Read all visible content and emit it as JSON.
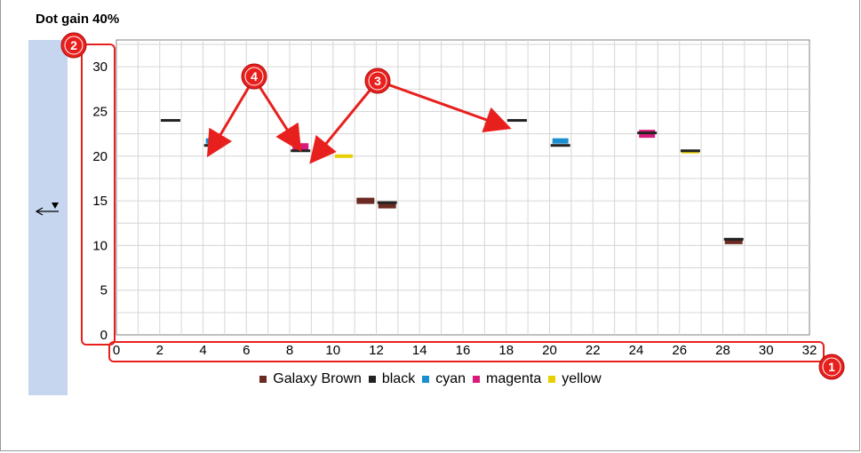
{
  "title": "Dot gain 40%",
  "side_panel": {
    "icon": "collapse-arrow-icon"
  },
  "chart_data": {
    "type": "scatter",
    "title": "Dot gain 40%",
    "xlabel": "",
    "ylabel": "",
    "xlim": [
      0,
      32
    ],
    "ylim": [
      0,
      33
    ],
    "xticks": [
      0,
      2,
      4,
      6,
      8,
      10,
      12,
      14,
      16,
      18,
      20,
      22,
      24,
      26,
      28,
      30,
      32
    ],
    "yticks": [
      0,
      5,
      10,
      15,
      20,
      25,
      30
    ],
    "grid": true,
    "legend_position": "bottom",
    "series": [
      {
        "name": "Galaxy Brown",
        "color": "#6b2a22",
        "points": [
          [
            11.5,
            15.0
          ],
          [
            12.5,
            14.5
          ],
          [
            28.5,
            10.5
          ]
        ]
      },
      {
        "name": "black",
        "color": "#222222",
        "points": [
          [
            2.5,
            24.0
          ],
          [
            4.5,
            21.2
          ],
          [
            8.5,
            20.6
          ],
          [
            12.5,
            14.8
          ],
          [
            18.5,
            24.0
          ],
          [
            20.5,
            21.2
          ],
          [
            24.5,
            22.6
          ],
          [
            26.5,
            20.6
          ],
          [
            28.5,
            10.7
          ]
        ]
      },
      {
        "name": "cyan",
        "color": "#1a8fd0",
        "points": [
          [
            4.5,
            21.7
          ],
          [
            20.5,
            21.7
          ]
        ]
      },
      {
        "name": "magenta",
        "color": "#d81b7a",
        "points": [
          [
            8.5,
            21.0
          ],
          [
            24.5,
            22.5
          ]
        ]
      },
      {
        "name": "yellow",
        "color": "#e8d000",
        "points": [
          [
            10.5,
            20.0
          ],
          [
            26.5,
            20.5
          ]
        ]
      }
    ]
  },
  "annotations": [
    {
      "id": "1",
      "label": "1"
    },
    {
      "id": "2",
      "label": "2"
    },
    {
      "id": "3",
      "label": "3"
    },
    {
      "id": "4",
      "label": "4"
    }
  ]
}
